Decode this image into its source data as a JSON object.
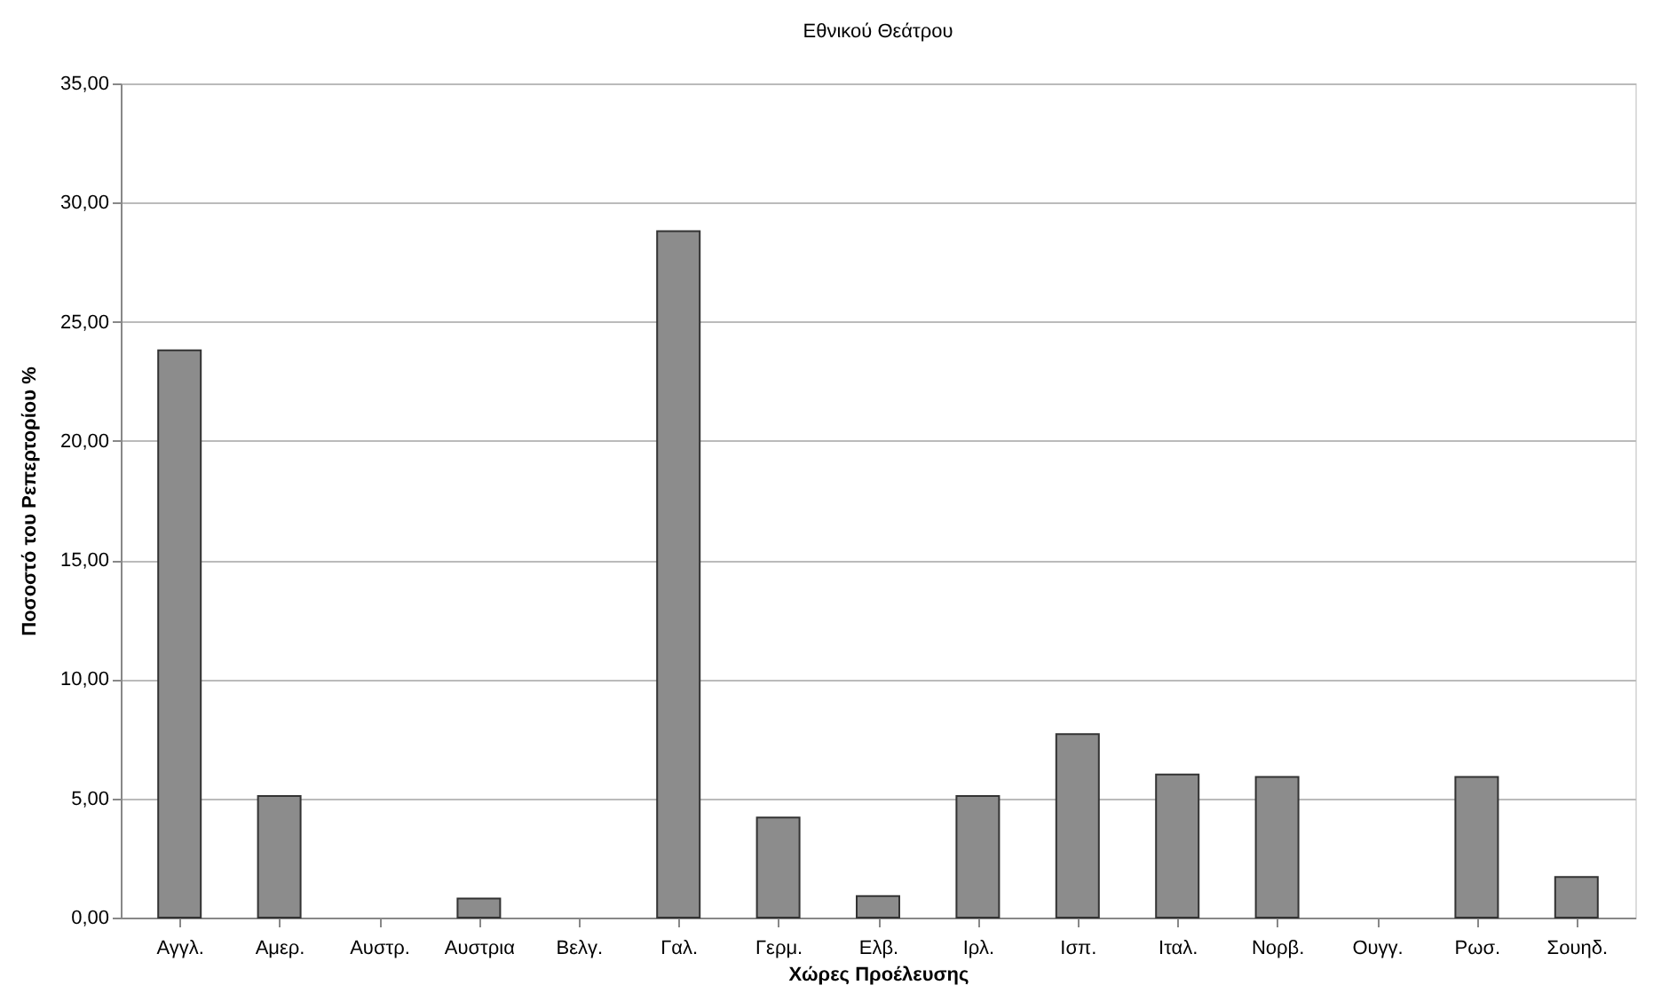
{
  "chart_data": {
    "type": "bar",
    "title": "Εθνικού Θεάτρου",
    "xlabel": "Χώρες Προέλευσης",
    "ylabel": "Ποσοστό του Ρεπερτορίου %",
    "categories": [
      "Αγγλ.",
      "Αμερ.",
      "Αυστρ.",
      "Αυστρια",
      "Βελγ.",
      "Γαλ.",
      "Γερμ.",
      "Ελβ.",
      "Ιρλ.",
      "Ισπ.",
      "Ιταλ.",
      "Νορβ.",
      "Ουγγ.",
      "Ρωσ.",
      "Σουηδ."
    ],
    "values": [
      23.8,
      5.1,
      0,
      0.8,
      0,
      28.8,
      4.2,
      0.9,
      5.1,
      7.7,
      6.0,
      5.9,
      0,
      5.9,
      1.7
    ],
    "color": "#8c8c8c",
    "ylim": [
      0,
      35
    ],
    "yticks": [
      {
        "value": 0,
        "label": "0,00"
      },
      {
        "value": 5,
        "label": "5,00"
      },
      {
        "value": 10,
        "label": "10,00"
      },
      {
        "value": 15,
        "label": "15,00"
      },
      {
        "value": 20,
        "label": "20,00"
      },
      {
        "value": 25,
        "label": "25,00"
      },
      {
        "value": 30,
        "label": "30,00"
      },
      {
        "value": 35,
        "label": "35,00"
      }
    ],
    "grid": "y"
  }
}
